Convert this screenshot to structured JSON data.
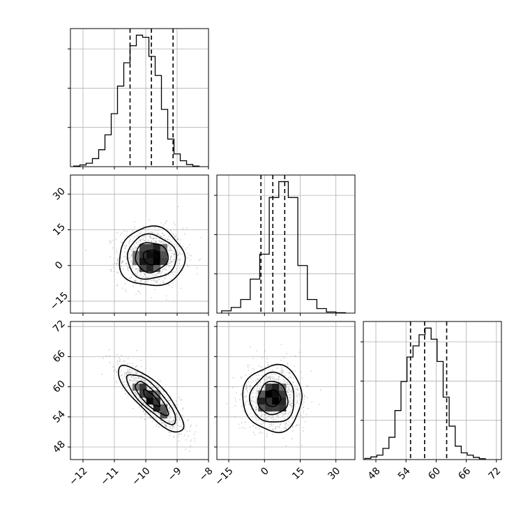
{
  "chart_data": {
    "type": "corner",
    "parameters": [
      "",
      "",
      ""
    ],
    "grid": true,
    "colors": {
      "axes": "#000000",
      "grid": "#b0b0b0",
      "scatter": "#9a9a9a",
      "density_max": "#000000"
    },
    "axes": [
      {
        "range": [
          -12.4,
          -8.0
        ],
        "ticks": [
          -12,
          -11,
          -10,
          -9,
          -8
        ],
        "labels": [
          "−12",
          "−11",
          "−10",
          "−9",
          "−8"
        ]
      },
      {
        "range": [
          -20,
          38
        ],
        "ticks": [
          -15,
          0,
          15,
          30
        ],
        "labels": [
          "−15",
          "0",
          "15",
          "30"
        ]
      },
      {
        "range": [
          45.5,
          73
        ],
        "ticks": [
          48,
          54,
          60,
          66,
          72
        ],
        "labels": [
          "48",
          "54",
          "60",
          "66",
          "72"
        ]
      }
    ],
    "marginals": [
      {
        "parameter": 0,
        "bins": [
          -12.3,
          -12.1,
          -11.9,
          -11.7,
          -11.5,
          -11.3,
          -11.1,
          -10.9,
          -10.7,
          -10.5,
          -10.3,
          -10.1,
          -9.9,
          -9.7,
          -9.5,
          -9.3,
          -9.1,
          -8.9,
          -8.7,
          -8.5,
          -8.3
        ],
        "counts": [
          0.3,
          0.8,
          1.6,
          3.8,
          8.0,
          15.0,
          25.0,
          38.0,
          49.0,
          57.0,
          62.0,
          61.0,
          52.0,
          43.0,
          27.0,
          13.0,
          6.0,
          2.8,
          1.0,
          0.3
        ],
        "quantiles": [
          -10.5,
          -9.82,
          -9.13
        ]
      },
      {
        "parameter": 1,
        "bins": [
          -18,
          -14,
          -10,
          -6,
          -2,
          2,
          6,
          10,
          14,
          18,
          22,
          26,
          30,
          34
        ],
        "counts": [
          1.0,
          2.5,
          6.0,
          15.0,
          26.0,
          51.0,
          58.0,
          51.0,
          21.0,
          6.0,
          2.0,
          0.5,
          0.2
        ],
        "quantiles": [
          -1.5,
          3.5,
          8.5
        ]
      },
      {
        "parameter": 2,
        "bins": [
          45.8,
          47.0,
          48.2,
          49.4,
          50.6,
          51.8,
          53.0,
          54.2,
          55.4,
          56.6,
          57.8,
          59.0,
          60.2,
          61.4,
          62.6,
          63.8,
          65.0,
          66.2,
          67.4,
          68.6,
          69.8
        ],
        "counts": [
          0.5,
          1.2,
          2.0,
          5.0,
          10.0,
          22.0,
          35.0,
          46.0,
          51.0,
          56.0,
          59.0,
          54.0,
          44.0,
          28.0,
          15.0,
          6.0,
          3.0,
          2.0,
          1.0,
          0.4
        ],
        "quantiles": [
          54.9,
          57.7,
          62.1
        ]
      }
    ],
    "joints": [
      {
        "x_param": 0,
        "y_param": 1,
        "mean": [
          -9.82,
          3.5
        ],
        "sd": [
          0.52,
          6.2
        ],
        "correlation": 0.0,
        "n_points": 900
      },
      {
        "x_param": 0,
        "y_param": 2,
        "mean": [
          -9.82,
          57.7
        ],
        "sd": [
          0.52,
          3.3
        ],
        "correlation": -0.82,
        "n_points": 900
      },
      {
        "x_param": 1,
        "y_param": 2,
        "mean": [
          3.5,
          57.7
        ],
        "sd": [
          6.2,
          3.3
        ],
        "correlation": 0.0,
        "n_points": 900
      }
    ],
    "contour_levels_sigma": [
      0.5,
      1.0,
      1.5,
      2.0
    ]
  }
}
